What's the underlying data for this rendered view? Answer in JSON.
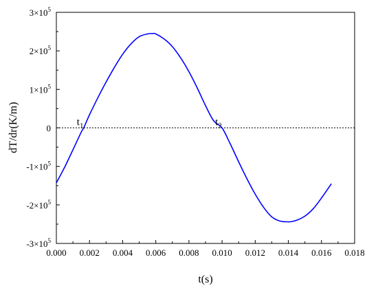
{
  "chart_data": {
    "type": "line",
    "xlabel": "t(s)",
    "ylabel": "dT/dr(K/m)",
    "xlim": [
      0.0,
      0.018
    ],
    "ylim": [
      -300000,
      300000
    ],
    "x_ticks": [
      0.0,
      0.002,
      0.004,
      0.006,
      0.008,
      0.01,
      0.012,
      0.014,
      0.016,
      0.018
    ],
    "x_tick_labels": [
      "0.000",
      "0.002",
      "0.004",
      "0.006",
      "0.008",
      "0.010",
      "0.012",
      "0.014",
      "0.016",
      "0.018"
    ],
    "y_ticks": [
      -300000,
      -200000,
      -100000,
      0,
      100000,
      200000,
      300000
    ],
    "y_tick_labels": [
      {
        "mant": "-3×10",
        "exp": "5"
      },
      {
        "mant": "-2×10",
        "exp": "5"
      },
      {
        "mant": "-1×10",
        "exp": "5"
      },
      {
        "mant": "0",
        "exp": ""
      },
      {
        "mant": "1×10",
        "exp": "5"
      },
      {
        "mant": "2×10",
        "exp": "5"
      },
      {
        "mant": "3×10",
        "exp": "5"
      }
    ],
    "series": [
      {
        "color": "#0000ff",
        "x": [
          0.0,
          0.0005,
          0.001,
          0.0015,
          0.00165,
          0.002,
          0.0025,
          0.003,
          0.0035,
          0.004,
          0.0045,
          0.005,
          0.0055,
          0.0058,
          0.006,
          0.0065,
          0.007,
          0.0075,
          0.008,
          0.0085,
          0.009,
          0.0095,
          0.01,
          0.0105,
          0.011,
          0.0115,
          0.012,
          0.0125,
          0.013,
          0.0135,
          0.014,
          0.0142,
          0.0145,
          0.015,
          0.0155,
          0.016,
          0.0166
        ],
        "y": [
          -143000,
          -102000,
          -57000,
          -11000,
          0,
          34000,
          78000,
          119000,
          157000,
          191000,
          218000,
          237000,
          244000,
          245000,
          244000,
          231000,
          211000,
          182000,
          146000,
          104000,
          58000,
          18000,
          0,
          -42000,
          -88000,
          -132000,
          -172000,
          -206000,
          -231000,
          -242000,
          -244000,
          -243000,
          -240000,
          -229000,
          -210000,
          -182000,
          -145000
        ]
      }
    ],
    "zero_line": {
      "y": 0,
      "style": "dotted"
    },
    "annotations": [
      {
        "base": "t",
        "sub": "1",
        "x": 0.00165,
        "y": 0
      },
      {
        "base": "t",
        "sub": "2",
        "x": 0.01,
        "y": 0
      }
    ],
    "grid": false,
    "legend": "none"
  }
}
